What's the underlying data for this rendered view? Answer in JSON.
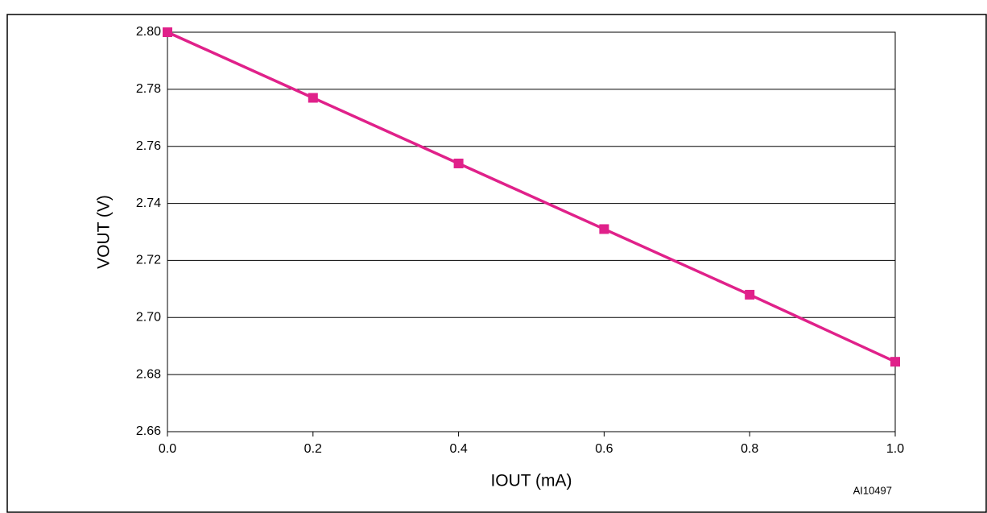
{
  "chart_data": {
    "type": "line",
    "x": [
      0,
      0.2,
      0.4,
      0.6,
      0.8,
      1.0
    ],
    "values": [
      2.8,
      2.777,
      2.754,
      2.731,
      2.708,
      2.6845
    ],
    "color": "#e0218a",
    "xlabel": "IOUT (mA)",
    "ylabel": "VOUT (V)",
    "note": "AI10497",
    "xlim": [
      0,
      1.0
    ],
    "ylim": [
      2.66,
      2.8
    ],
    "xticks": [
      {
        "value": 0,
        "label": "0.0"
      },
      0.2,
      0.4,
      0.6,
      0.8,
      {
        "value": 1.0,
        "label": "1.0"
      }
    ],
    "yticks": [
      2.66,
      2.68,
      {
        "value": 2.7,
        "label": "2.70"
      },
      2.72,
      2.74,
      2.76,
      2.78,
      {
        "value": 2.8,
        "label": "2.80"
      }
    ],
    "grid": true
  }
}
